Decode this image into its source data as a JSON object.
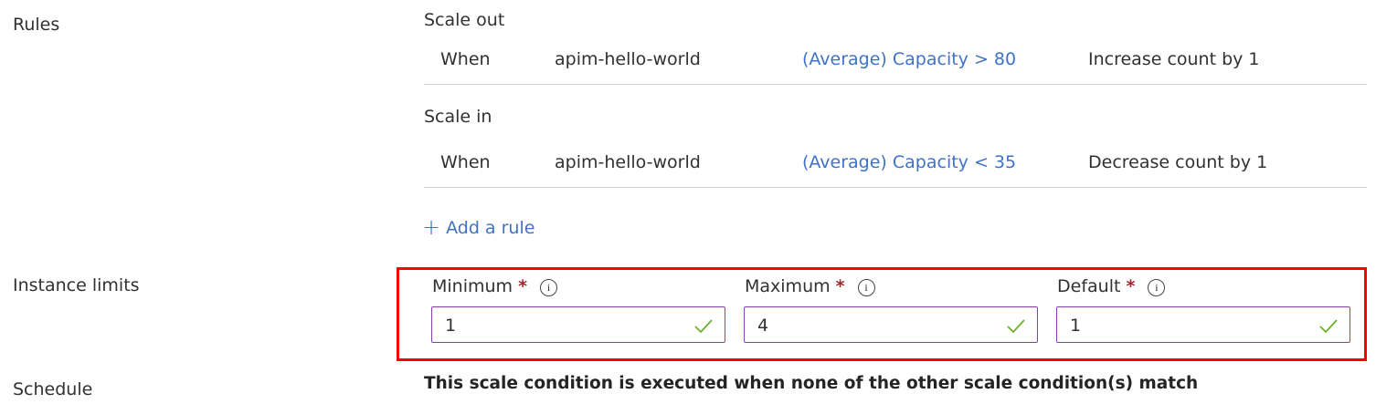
{
  "sections": {
    "rules": "Rules",
    "instance_limits": "Instance limits",
    "schedule": "Schedule"
  },
  "rules": {
    "scale_out": {
      "heading": "Scale out",
      "when": "When",
      "resource": "apim-hello-world",
      "condition": "(Average) Capacity > 80",
      "action": "Increase count by 1"
    },
    "scale_in": {
      "heading": "Scale in",
      "when": "When",
      "resource": "apim-hello-world",
      "condition": "(Average) Capacity < 35",
      "action": "Decrease count by 1"
    },
    "add_rule": "Add a rule"
  },
  "limits": {
    "minimum": {
      "label": "Minimum",
      "value": "1"
    },
    "maximum": {
      "label": "Maximum",
      "value": "4"
    },
    "default": {
      "label": "Default",
      "value": "1"
    },
    "required_mark": "*",
    "info_glyph": "i"
  },
  "schedule_text": "This scale condition is executed when none of the other scale condition(s) match",
  "colors": {
    "link": "#3f73c7",
    "highlight": "#ff0000",
    "valid": "#6bb12d",
    "input_border": "#8a3fb0"
  }
}
